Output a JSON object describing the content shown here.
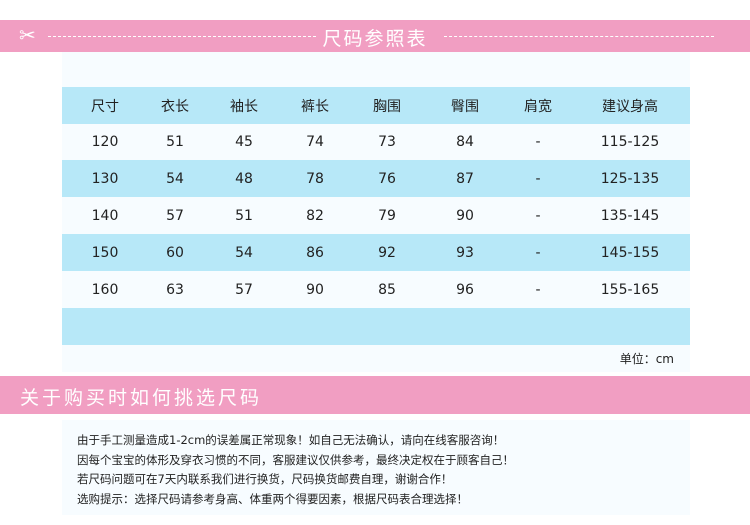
{
  "header": {
    "icon": "scissors-icon",
    "title": "尺码参照表"
  },
  "table": {
    "columns": [
      "尺寸",
      "衣长",
      "袖长",
      "裤长",
      "胸围",
      "臀围",
      "肩宽",
      "建议身高"
    ],
    "rows": [
      [
        "120",
        "51",
        "45",
        "74",
        "73",
        "84",
        "-",
        "115-125"
      ],
      [
        "130",
        "54",
        "48",
        "78",
        "76",
        "87",
        "-",
        "125-135"
      ],
      [
        "140",
        "57",
        "51",
        "82",
        "79",
        "90",
        "-",
        "135-145"
      ],
      [
        "150",
        "60",
        "54",
        "86",
        "92",
        "93",
        "-",
        "145-155"
      ],
      [
        "160",
        "63",
        "57",
        "90",
        "85",
        "96",
        "-",
        "155-165"
      ]
    ],
    "unit": "单位：cm"
  },
  "guide": {
    "title": "关于购买时如何挑选尺码",
    "notes": [
      "由于手工测量造成1-2cm的误差属正常现象！如自己无法确认，请向在线客服咨询！",
      "因每个宝宝的体形及穿衣习惯的不同，客服建议仅供参考，最终决定权在于顾客自己！",
      "若尺码问题可在7天内联系我们进行换货，尺码换货邮费自理，谢谢合作！",
      "选购提示：选择尺码请参考身高、体重两个得要因素，根据尺码表合理选择！"
    ]
  },
  "colors": {
    "pink": "#f19ec2",
    "blue": "#b7e8f8",
    "panel": "#f7fcff"
  }
}
